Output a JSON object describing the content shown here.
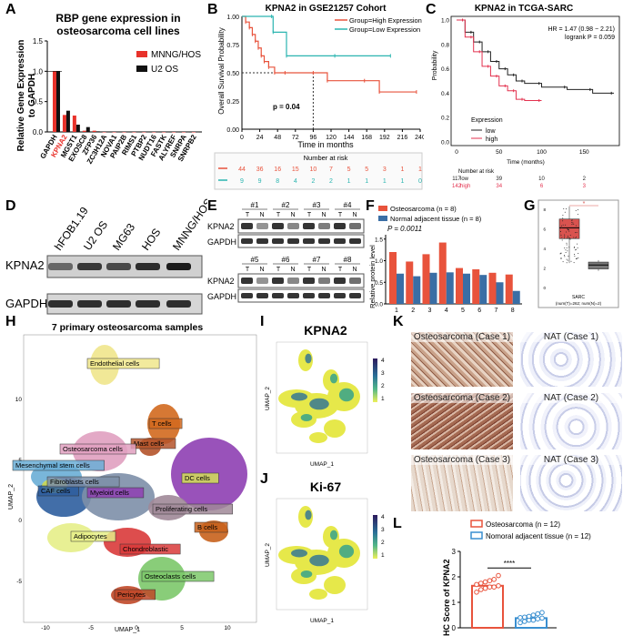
{
  "panels": {
    "A": {
      "label": "A",
      "title_line1": "RBP gene expression in",
      "title_line2": "osteosarcoma cell lines",
      "ylabel_line1": "Relative Gene Expression",
      "ylabel_line2": "to GAPDH",
      "legend": [
        "MNNG/HOS",
        "U2 OS"
      ],
      "colors": {
        "hos": "#e8322b",
        "u2os": "#111111"
      },
      "chart_data": {
        "type": "bar",
        "ylim": [
          0,
          1.5
        ],
        "yticks": [
          "0.0",
          "0.5",
          "1.0",
          "1.5"
        ],
        "categories": [
          "GAPDH",
          "KPNA2",
          "MGST1",
          "EXOSC8",
          "ZFP36",
          "ZC3H12A",
          "NOVA1",
          "PAIP2B",
          "RIMS1",
          "PTBP2",
          "NUDT16",
          "FASTK",
          "ALYREF",
          "SNRPA",
          "SNRPB2"
        ],
        "highlight": "KPNA2",
        "series": [
          {
            "name": "MNNG/HOS",
            "values": [
              1.0,
              0.28,
              0.27,
              0.02,
              0.02,
              0.0,
              0.0,
              0.0,
              0.0,
              0.0,
              0.0,
              0.0,
              0.0,
              0.0,
              0.0
            ]
          },
          {
            "name": "U2 OS",
            "values": [
              1.0,
              0.35,
              0.12,
              0.08,
              0.01,
              0.0,
              0.0,
              0.0,
              0.0,
              0.0,
              0.0,
              0.0,
              0.0,
              0.0,
              0.0
            ]
          }
        ]
      }
    },
    "B": {
      "label": "B",
      "title": "KPNA2 in GSE21257 Cohort",
      "ylabel": "Overall Survival Probability",
      "xlabel": "Time in months",
      "legend_high": "Group=High Expression",
      "legend_low": "Group=Low Expression",
      "pval": "p = 0.04",
      "risk_title": "Number at risk",
      "xticks": [
        "0",
        "24",
        "48",
        "72",
        "96",
        "120",
        "144",
        "168",
        "192",
        "216",
        "240"
      ],
      "yticks": [
        "0.00",
        "0.25",
        "0.50",
        "0.75",
        "1.00"
      ],
      "risk_high": [
        "44",
        "36",
        "16",
        "15",
        "10",
        "7",
        "5",
        "5",
        "3",
        "1",
        "1"
      ],
      "risk_low": [
        "9",
        "9",
        "8",
        "4",
        "2",
        "2",
        "1",
        "1",
        "1",
        "1",
        "0"
      ],
      "chart_data": {
        "type": "line",
        "xlim": [
          0,
          240
        ],
        "ylim": [
          0,
          1
        ],
        "series": [
          {
            "name": "High Expression",
            "color": "#e8533c",
            "x": [
              0,
              5,
              10,
              14,
              18,
              22,
              26,
              30,
              36,
              44,
              58,
              96,
              115,
              165,
              185,
              235
            ],
            "y": [
              1.0,
              0.95,
              0.9,
              0.84,
              0.78,
              0.72,
              0.65,
              0.6,
              0.55,
              0.5,
              0.5,
              0.5,
              0.43,
              0.43,
              0.33,
              0.33
            ]
          },
          {
            "name": "Low Expression",
            "color": "#2bb5b0",
            "x": [
              0,
              40,
              42,
              60,
              125,
              200
            ],
            "y": [
              1.0,
              1.0,
              0.86,
              0.65,
              0.65,
              0.65
            ]
          }
        ]
      }
    },
    "C": {
      "label": "C",
      "title": "KPNA2 in TCGA-SARC",
      "ylabel": "Probability",
      "xlabel": "Time (months)",
      "hr": "HR = 1.47 (0.98 − 2.21)",
      "logrank": "logrank P = 0.059",
      "legend_title": "Expression",
      "legend": [
        "low",
        "high"
      ],
      "risk_title": "Number at risk",
      "risk_rows": [
        [
          "low",
          "117",
          "39",
          "10",
          "2"
        ],
        [
          "high",
          "142",
          "34",
          "6",
          "3"
        ]
      ],
      "xticks": [
        "0",
        "50",
        "100",
        "150"
      ],
      "yticks": [
        "0.0",
        "0.2",
        "0.4",
        "0.6",
        "0.8",
        "1.0"
      ],
      "chart_data": {
        "type": "line",
        "xlim": [
          0,
          185
        ],
        "ylim": [
          0,
          1
        ],
        "series": [
          {
            "name": "low",
            "color": "#222222",
            "x": [
              0,
              10,
              20,
              30,
              40,
              50,
              60,
              70,
              80,
              100,
              130,
              160,
              185
            ],
            "y": [
              1.0,
              0.9,
              0.82,
              0.74,
              0.66,
              0.6,
              0.55,
              0.5,
              0.48,
              0.45,
              0.43,
              0.4,
              0.4
            ]
          },
          {
            "name": "high",
            "color": "#e3324f",
            "x": [
              0,
              10,
              20,
              30,
              40,
              50,
              60,
              70,
              80,
              100
            ],
            "y": [
              1.0,
              0.86,
              0.74,
              0.62,
              0.54,
              0.46,
              0.42,
              0.35,
              0.34,
              0.34
            ]
          }
        ]
      }
    },
    "D": {
      "label": "D",
      "cells": [
        "hFOB1.19",
        "U2 OS",
        "MG63",
        "HOS",
        "MNNG/HOS"
      ],
      "rows": [
        "KPNA2",
        "GAPDH"
      ]
    },
    "E": {
      "label": "E",
      "pairs_top": [
        "#1",
        "#2",
        "#3",
        "#4"
      ],
      "pairs_bottom": [
        "#5",
        "#6",
        "#7",
        "#8"
      ],
      "t": "T",
      "n": "N",
      "rows": [
        "KPNA2",
        "GAPDH"
      ]
    },
    "F": {
      "label": "F",
      "legend": [
        "Osteosarcoma (n = 8)",
        "Normal adjacent tissue (n = 8)"
      ],
      "pval": "P = 0.0011",
      "ylabel": "Relative protein level",
      "chart_data": {
        "type": "bar",
        "ylim": [
          0,
          1.6
        ],
        "yticks": [
          "0.0",
          "0.5",
          "1.0",
          "1.5"
        ],
        "categories": [
          "1",
          "2",
          "3",
          "4",
          "5",
          "6",
          "7",
          "8"
        ],
        "series": [
          {
            "name": "Osteosarcoma",
            "color": "#e8533c",
            "values": [
              1.2,
              0.98,
              1.15,
              1.42,
              0.83,
              0.8,
              0.72,
              0.68
            ]
          },
          {
            "name": "Normal adjacent tissue",
            "color": "#3a6ea5",
            "values": [
              0.7,
              0.64,
              0.72,
              0.73,
              0.7,
              0.67,
              0.5,
              0.3
            ]
          }
        ]
      }
    },
    "G": {
      "label": "G",
      "xlabel": "SARC",
      "sublabel": "(num(T)=262; num(N)=2)",
      "sig": "*",
      "chart_data": {
        "type": "box",
        "ylim": [
          0,
          8
        ],
        "yticks": [
          "0",
          "2",
          "4",
          "6",
          "8"
        ],
        "series": [
          {
            "name": "T",
            "median": 6.1,
            "q1": 5.0,
            "q3": 7.0,
            "min": 2.5,
            "max": 8.3,
            "color": "#d9534f"
          },
          {
            "name": "N",
            "median": 2.3,
            "q1": 1.9,
            "q3": 2.6,
            "min": 1.7,
            "max": 2.8,
            "color": "#777777"
          }
        ]
      }
    },
    "H": {
      "label": "H",
      "title": "7 primary osteosarcoma samples",
      "xlabel": "UMAP_1",
      "ylabel": "UMAP_2",
      "xticks": [
        "-10",
        "-5",
        "0",
        "5",
        "10"
      ],
      "yticks": [
        "-5",
        "0",
        "5",
        "10"
      ],
      "clusters": [
        {
          "name": "Endothelial cells",
          "color": "#f0e68c"
        },
        {
          "name": "T cells",
          "color": "#d2691e"
        },
        {
          "name": "Mast cells",
          "color": "#b4532a"
        },
        {
          "name": "Osteosarcoma cells",
          "color": "#e0a0c0"
        },
        {
          "name": "Mesenchymal stem cells",
          "color": "#6aaed6"
        },
        {
          "name": "DC cells",
          "color": "#d4e157"
        },
        {
          "name": "CAF cells",
          "color": "#2e5e9e"
        },
        {
          "name": "Fibroblasts cells",
          "color": "#7d8fa8"
        },
        {
          "name": "Myeloid cells",
          "color": "#8e3fb3"
        },
        {
          "name": "Proliferating cells",
          "color": "#a08898"
        },
        {
          "name": "Adipocytes",
          "color": "#e6ee88"
        },
        {
          "name": "B cells",
          "color": "#c8621c"
        },
        {
          "name": "Chondroblastic",
          "color": "#d93a3a"
        },
        {
          "name": "Osteoclasts cells",
          "color": "#7cc86a"
        },
        {
          "name": "Pericytes",
          "color": "#c04828"
        }
      ]
    },
    "I": {
      "label": "I",
      "title": "KPNA2",
      "xlabel": "UMAP_1",
      "ylabel": "UMAP_2",
      "scale": [
        "4",
        "3",
        "2",
        "1"
      ]
    },
    "J": {
      "label": "J",
      "title": "Ki-67",
      "xlabel": "UMAP_1",
      "ylabel": "UMAP_2",
      "scale": [
        "4",
        "3",
        "2",
        "1"
      ]
    },
    "K": {
      "label": "K",
      "images": [
        "Osteosarcoma (Case 1)",
        "NAT (Case 1)",
        "Osteosarcoma (Case 2)",
        "NAT (Case 2)",
        "Osteosarcoma (Case 3)",
        "NAT (Case 3)"
      ]
    },
    "L": {
      "label": "L",
      "legend": [
        "Osteosarcoma (n = 12)",
        "Nomoral adjacent tissue (n = 12)"
      ],
      "ylabel": "IHC Score of KPNA2",
      "sig": "****",
      "chart_data": {
        "type": "bar",
        "ylim": [
          0,
          3
        ],
        "yticks": [
          "0",
          "1",
          "2",
          "3"
        ],
        "categories": [
          "Osteosarcoma",
          "NAT"
        ],
        "series": [
          {
            "name": "Osteosarcoma",
            "color": "#e8533c",
            "mean": 1.65,
            "points": [
              1.4,
              1.5,
              1.55,
              1.6,
              1.6,
              1.65,
              1.7,
              1.75,
              1.8,
              1.85,
              1.9,
              2.05
            ]
          },
          {
            "name": "NAT",
            "color": "#3a8fd0",
            "mean": 0.38,
            "points": [
              0.2,
              0.25,
              0.3,
              0.3,
              0.35,
              0.38,
              0.4,
              0.42,
              0.45,
              0.5,
              0.55,
              0.6
            ]
          }
        ]
      }
    }
  }
}
